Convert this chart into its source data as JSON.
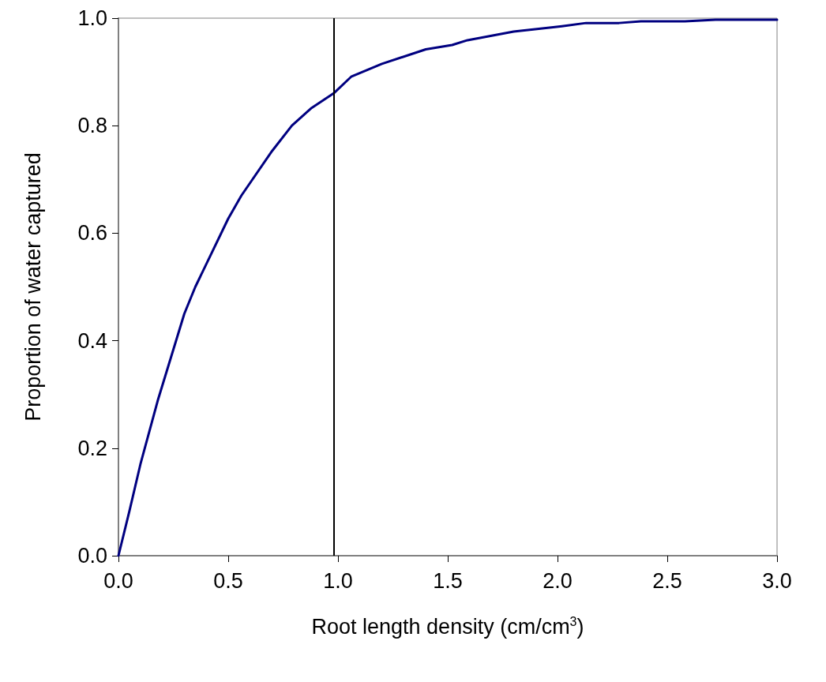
{
  "chart_data": {
    "type": "line",
    "xlabel": "Root length density (cm/cm$^{3}$)",
    "ylabel": "Proportion of water captured",
    "xlim": [
      0,
      3
    ],
    "xticks": [
      {
        "value": 0,
        "label": "0.0"
      },
      {
        "value": 0.5,
        "label": "0.5"
      },
      {
        "value": 1,
        "label": "1.0"
      },
      {
        "value": 1.5,
        "label": "1.5"
      },
      {
        "value": 2,
        "label": "2.0"
      },
      {
        "value": 2.5,
        "label": "2.5"
      },
      {
        "value": 3,
        "label": "3.0"
      }
    ],
    "ylim": [
      0,
      1
    ],
    "yticks": [
      {
        "value": 0,
        "label": "0.0"
      },
      {
        "value": 0.2,
        "label": "0.2"
      },
      {
        "value": 0.4,
        "label": "0.4"
      },
      {
        "value": 0.6,
        "label": "0.6"
      },
      {
        "value": 0.8,
        "label": "0.8"
      },
      {
        "value": 1,
        "label": "1.0"
      }
    ],
    "grid": false,
    "marker": "none",
    "line_style": "solid",
    "ref_lines": [
      {
        "axis": "x",
        "value": 0.98,
        "color": "#000000"
      }
    ],
    "series": [
      {
        "color": "#000080",
        "x": [
          0,
          0.05,
          0.1,
          0.18,
          0.3,
          0.35,
          0.5,
          0.56,
          0.7,
          0.79,
          0.88,
          0.98,
          1.06,
          1.2,
          1.4,
          1.52,
          1.59,
          1.8,
          1.98,
          2.02,
          2.13,
          2.28,
          2.38,
          2.58,
          2.72,
          3.0
        ],
        "values": [
          0,
          0.083,
          0.17,
          0.29,
          0.45,
          0.5,
          0.627,
          0.67,
          0.753,
          0.8,
          0.833,
          0.86,
          0.891,
          0.915,
          0.942,
          0.95,
          0.959,
          0.975,
          0.983,
          0.985,
          0.991,
          0.991,
          0.994,
          0.994,
          0.997,
          0.997
        ]
      }
    ]
  }
}
